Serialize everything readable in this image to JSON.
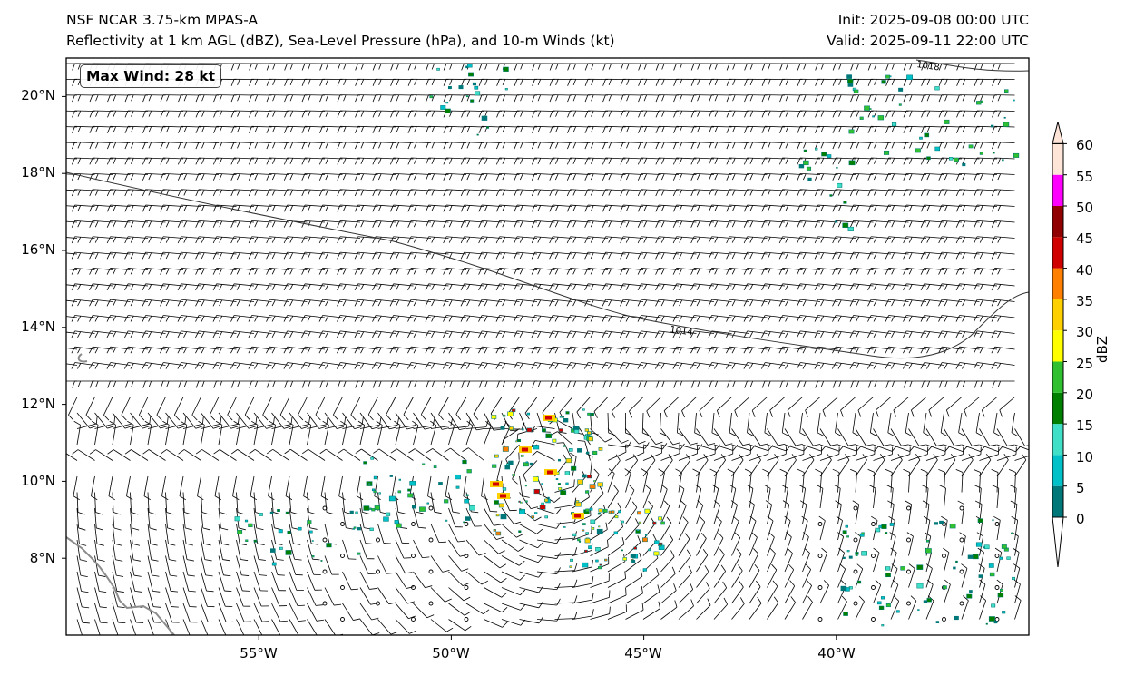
{
  "header": {
    "title_left_1": "NSF NCAR 3.75-km MPAS-A",
    "title_left_2": "Reflectivity at 1 km AGL (dBZ), Sea-Level Pressure (hPa), and 10-m Winds (kt)",
    "title_right_1": "Init: 2025-09-08 00:00 UTC",
    "title_right_2": "Valid: 2025-09-11 22:00 UTC"
  },
  "map": {
    "extent": {
      "lon_min": -60,
      "lon_max": -35,
      "lat_min": 6,
      "lat_max": 21
    },
    "lat_ticks": [
      "20°N",
      "18°N",
      "16°N",
      "14°N",
      "12°N",
      "10°N",
      "8°N"
    ],
    "lon_ticks": [
      "55°W",
      "50°W",
      "45°W",
      "40°W"
    ],
    "max_wind_label": "Max Wind: 28 kt",
    "isobar_labels": [
      "1014",
      "1018"
    ],
    "coastline_color": "#8c8c8c"
  },
  "colorbar": {
    "unit": "dBZ",
    "ticks": [
      "0",
      "5",
      "10",
      "15",
      "20",
      "25",
      "30",
      "35",
      "40",
      "45",
      "50",
      "55",
      "60"
    ],
    "colors": [
      "#00787a",
      "#00c0c8",
      "#40e0c8",
      "#008000",
      "#30c030",
      "#ffff00",
      "#ffd000",
      "#ff8000",
      "#d00000",
      "#900000",
      "#ff00ff",
      "#ffe4d8"
    ]
  }
}
